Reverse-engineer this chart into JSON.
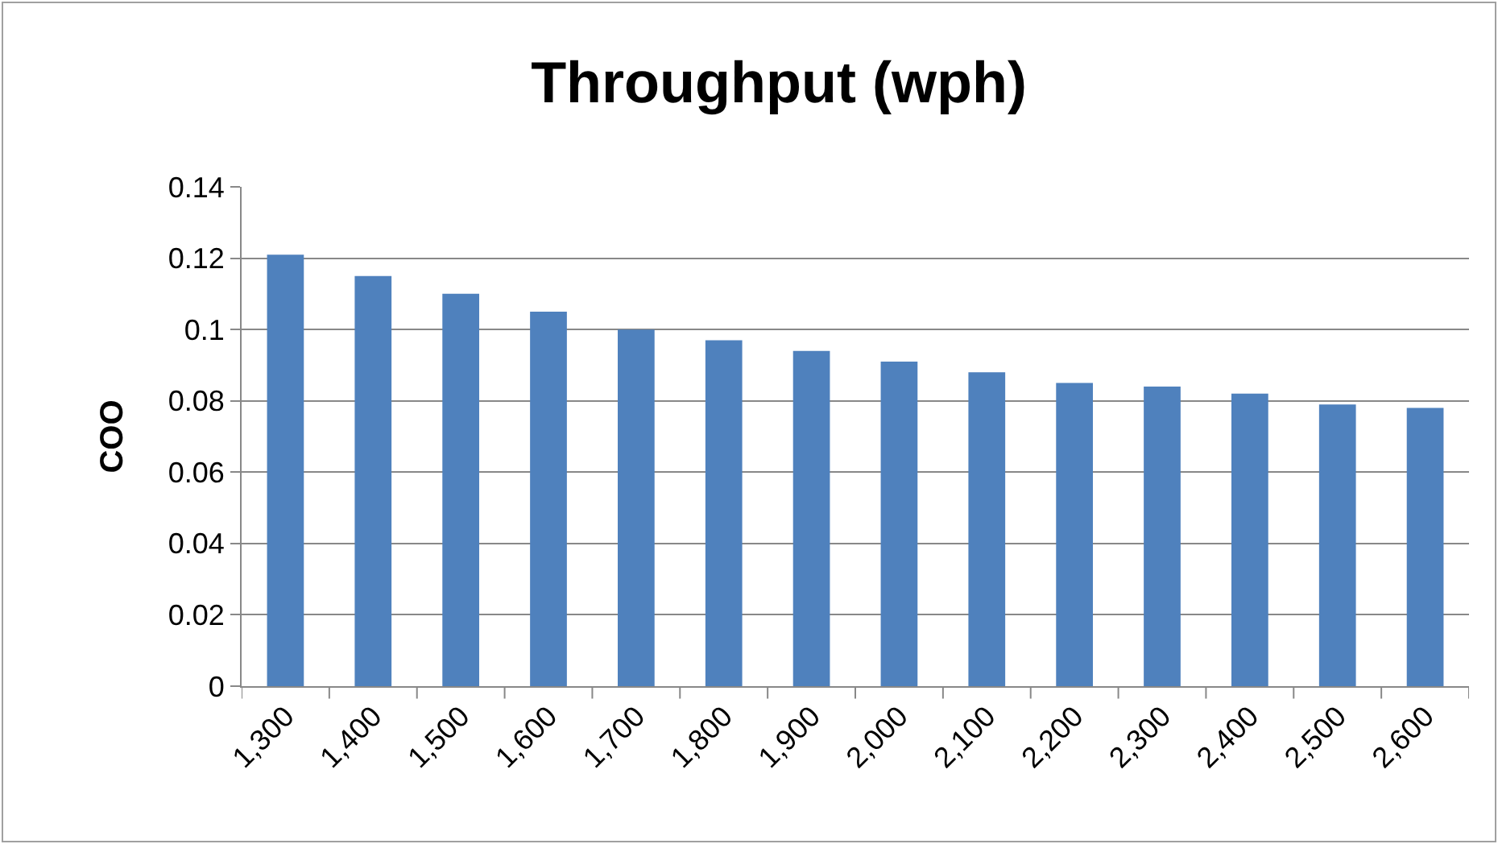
{
  "chart_data": {
    "type": "bar",
    "title": "Throughput (wph)",
    "ylabel": "COO",
    "categories": [
      "1,300",
      "1,400",
      "1,500",
      "1,600",
      "1,700",
      "1,800",
      "1,900",
      "2,000",
      "2,100",
      "2,200",
      "2,300",
      "2,400",
      "2,500",
      "2,600"
    ],
    "values": [
      0.121,
      0.115,
      0.11,
      0.105,
      0.1,
      0.097,
      0.094,
      0.091,
      0.088,
      0.085,
      0.084,
      0.082,
      0.079,
      0.078
    ],
    "color": "#4f81bd",
    "ylim": [
      0,
      0.14
    ],
    "yticks": [
      0,
      0.02,
      0.04,
      0.06,
      0.08,
      0.1,
      0.12,
      0.14
    ],
    "grid": "y"
  }
}
